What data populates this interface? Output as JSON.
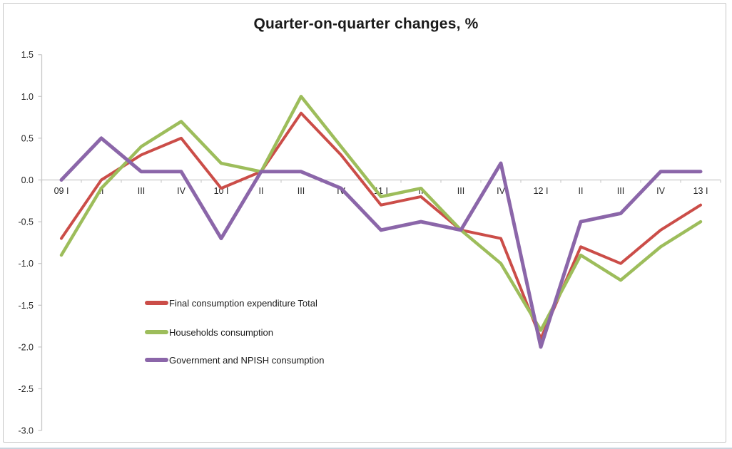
{
  "title": "Quarter-on-quarter changes, %",
  "colors": {
    "total": "#CB4D48",
    "households": "#9DBD5B",
    "government": "#8B66A9",
    "axis_line": "#C8C8C8",
    "zero_gridline": "#C8C8C8",
    "tick_text": "#262626",
    "title_text": "#1A1A1A",
    "chart_border": "#C6C6C6"
  },
  "chart_data": {
    "type": "line",
    "title": "Quarter-on-quarter changes, %",
    "xlabel": "",
    "ylabel": "",
    "categories": [
      "09 I",
      "II",
      "III",
      "IV",
      "10 I",
      "II",
      "III",
      "IV",
      "11 I",
      "II",
      "III",
      "IV",
      "12 I",
      "II",
      "III",
      "IV",
      "13 I"
    ],
    "series": [
      {
        "name": "Final consumption expenditure Total",
        "color_key": "total",
        "values": [
          -0.7,
          0.0,
          0.3,
          0.5,
          -0.1,
          0.1,
          0.8,
          0.3,
          -0.3,
          -0.2,
          -0.6,
          -0.7,
          -1.9,
          -0.8,
          -1.0,
          -0.6,
          -0.3
        ]
      },
      {
        "name": "Households consumption",
        "color_key": "households",
        "values": [
          -0.9,
          -0.1,
          0.4,
          0.7,
          0.2,
          0.1,
          1.0,
          0.4,
          -0.2,
          -0.1,
          -0.6,
          -1.0,
          -1.8,
          -0.9,
          -1.2,
          -0.8,
          -0.5
        ]
      },
      {
        "name": "Government and NPISH consumption",
        "color_key": "government",
        "values": [
          0.0,
          0.5,
          0.1,
          0.1,
          -0.7,
          0.1,
          0.1,
          -0.1,
          -0.6,
          -0.5,
          -0.6,
          0.2,
          -2.0,
          -0.5,
          -0.4,
          0.1,
          0.1
        ]
      }
    ],
    "ylim": [
      -3.0,
      1.5
    ],
    "ytick_step": 0.5,
    "ytick_labels": [
      "1.5",
      "1.0",
      "0.5",
      "0.0",
      "-0.5",
      "-1.0",
      "-1.5",
      "-2.0",
      "-2.5",
      "-3.0"
    ],
    "grid": "zero-line-only",
    "legend_position": "inside-left-lower"
  }
}
